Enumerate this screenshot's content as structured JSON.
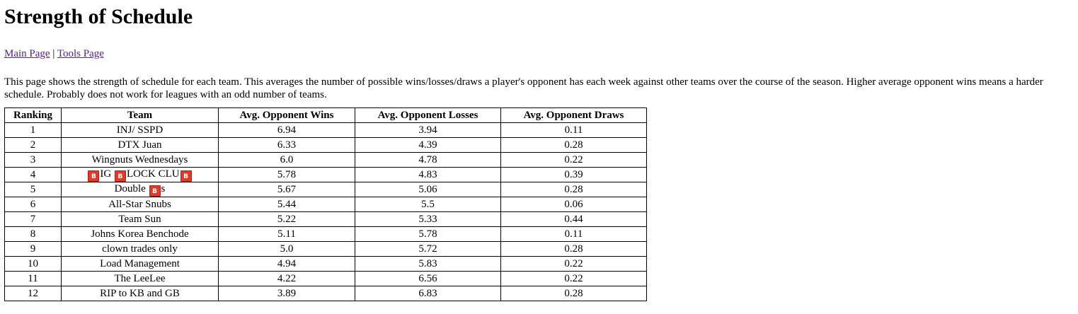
{
  "title": "Strength of Schedule",
  "nav": {
    "main_page": "Main Page",
    "separator": "|",
    "tools_page": "Tools Page"
  },
  "description": "This page shows the strength of schedule for each team. This averages the number of possible wins/losses/draws a player's opponent has each week against other teams over the course of the season. Higher average opponent wins means a harder schedule. Probably does not work for leagues with an odd number of teams.",
  "table": {
    "headers": [
      "Ranking",
      "Team",
      "Avg. Opponent Wins",
      "Avg. Opponent Losses",
      "Avg. Opponent Draws"
    ],
    "rows": [
      {
        "rank": "1",
        "team": [
          {
            "t": "INJ/ SSPD"
          }
        ],
        "wins": "6.94",
        "losses": "3.94",
        "draws": "0.11"
      },
      {
        "rank": "2",
        "team": [
          {
            "t": "DTX Juan"
          }
        ],
        "wins": "6.33",
        "losses": "4.39",
        "draws": "0.28"
      },
      {
        "rank": "3",
        "team": [
          {
            "t": "Wingnuts Wednesdays"
          }
        ],
        "wins": "6.0",
        "losses": "4.78",
        "draws": "0.22"
      },
      {
        "rank": "4",
        "team": [
          {
            "emoji": "B"
          },
          {
            "t": "IG "
          },
          {
            "emoji": "B"
          },
          {
            "t": "LOCK CLU"
          },
          {
            "emoji": "B"
          }
        ],
        "wins": "5.78",
        "losses": "4.83",
        "draws": "0.39"
      },
      {
        "rank": "5",
        "team": [
          {
            "t": "Double "
          },
          {
            "emoji": "B"
          },
          {
            "t": "s"
          }
        ],
        "wins": "5.67",
        "losses": "5.06",
        "draws": "0.28"
      },
      {
        "rank": "6",
        "team": [
          {
            "t": "All-Star Snubs"
          }
        ],
        "wins": "5.44",
        "losses": "5.5",
        "draws": "0.06"
      },
      {
        "rank": "7",
        "team": [
          {
            "t": "Team Sun"
          }
        ],
        "wins": "5.22",
        "losses": "5.33",
        "draws": "0.44"
      },
      {
        "rank": "8",
        "team": [
          {
            "t": "Johns Korea Benchode"
          }
        ],
        "wins": "5.11",
        "losses": "5.78",
        "draws": "0.11"
      },
      {
        "rank": "9",
        "team": [
          {
            "t": "clown trades only"
          }
        ],
        "wins": "5.0",
        "losses": "5.72",
        "draws": "0.28"
      },
      {
        "rank": "10",
        "team": [
          {
            "t": "Load Management"
          }
        ],
        "wins": "4.94",
        "losses": "5.83",
        "draws": "0.22"
      },
      {
        "rank": "11",
        "team": [
          {
            "t": "The LeeLee"
          }
        ],
        "wins": "4.22",
        "losses": "6.56",
        "draws": "0.22"
      },
      {
        "rank": "12",
        "team": [
          {
            "t": "RIP to KB and GB"
          }
        ],
        "wins": "3.89",
        "losses": "6.83",
        "draws": "0.28"
      }
    ]
  },
  "colors": {
    "link": "#551a8b",
    "emoji_bg": "#e03a2b"
  }
}
